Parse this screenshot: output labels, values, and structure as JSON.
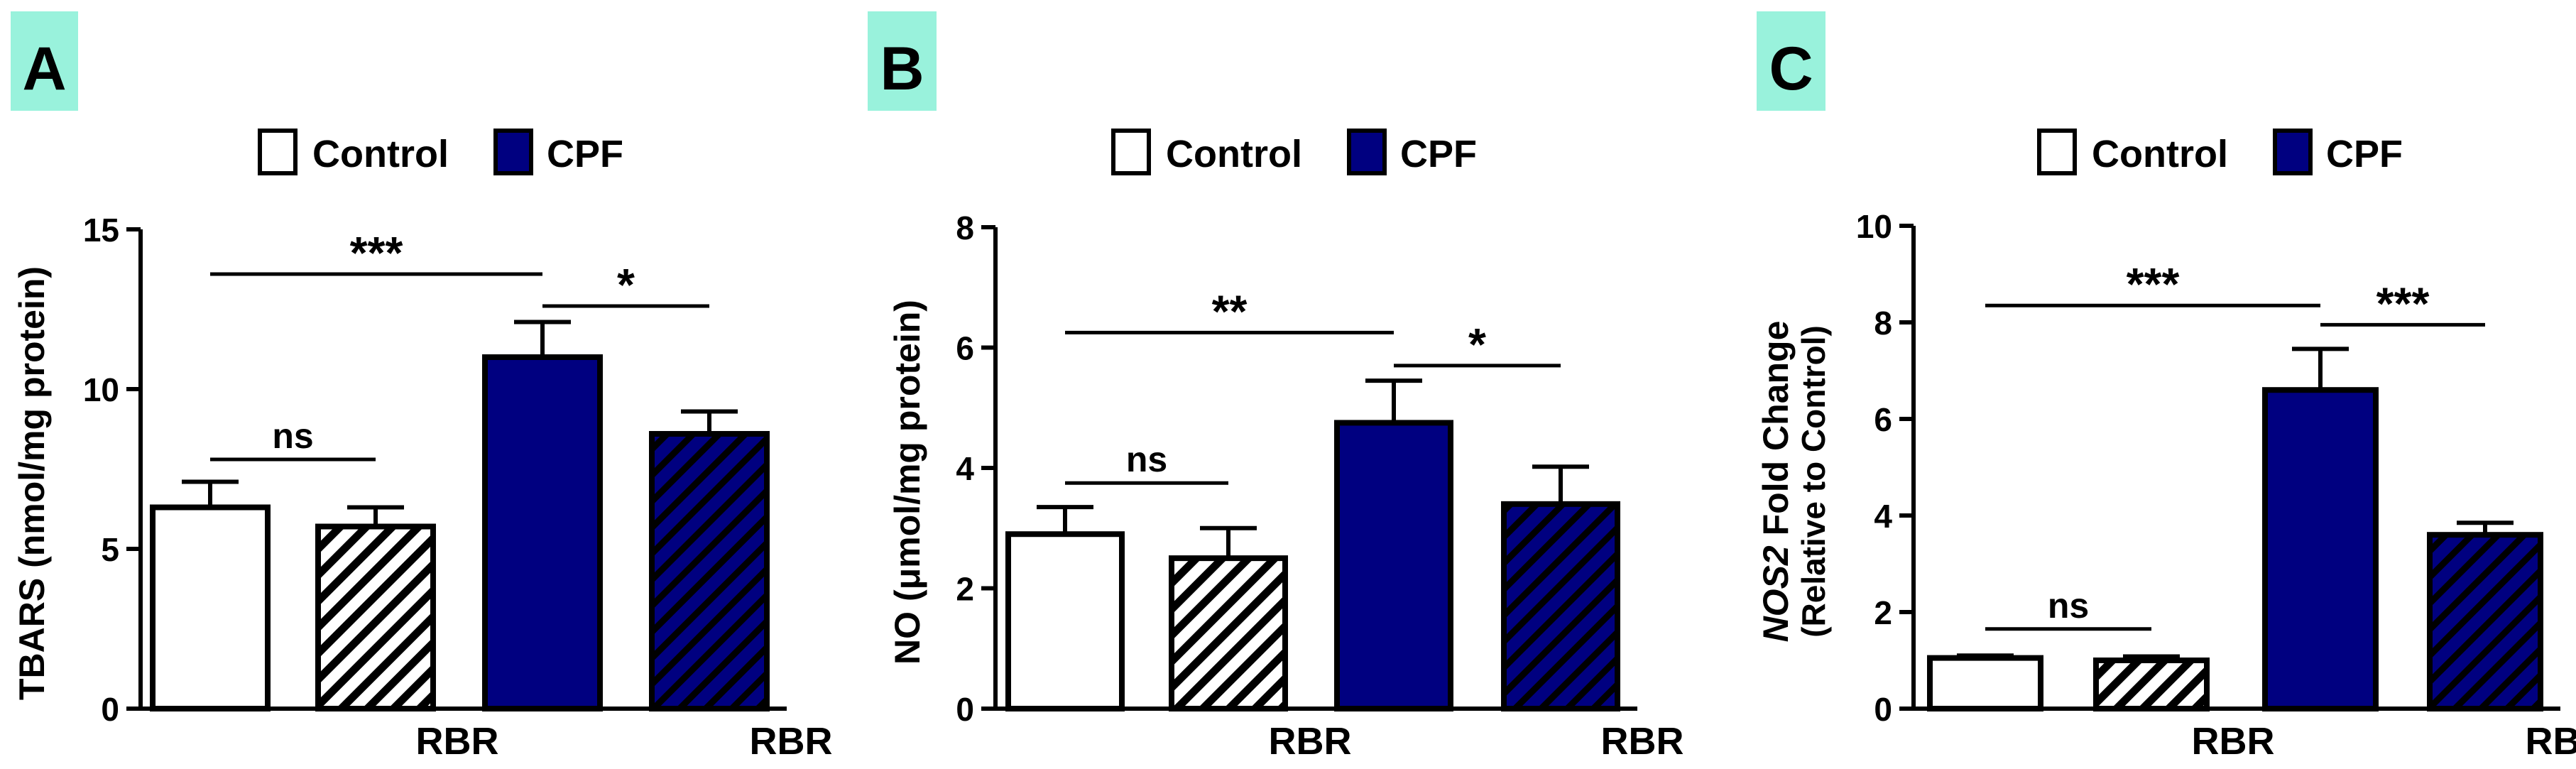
{
  "colors": {
    "control_fill": "#ffffff",
    "cpf_fill": "#000080",
    "hatch_light": "#000000",
    "hatch_dark": "#000000",
    "label_bg": "#99f2dc",
    "stroke": "#000000"
  },
  "legend": {
    "control": "Control",
    "cpf": "CPF"
  },
  "chart_data": [
    {
      "panel": "A",
      "type": "bar",
      "ylabel": "TBARS (nmol/mg protein)",
      "ylim": [
        0,
        15
      ],
      "yticks": [
        0,
        5,
        10,
        15
      ],
      "categories": [
        "Control",
        "Control + RBR",
        "CPF",
        "CPF + RBR"
      ],
      "xtick_labels": [
        "",
        "RBR",
        "",
        "RBR"
      ],
      "values": [
        6.3,
        5.7,
        11.0,
        8.6
      ],
      "errors": [
        0.8,
        0.6,
        1.1,
        0.7
      ],
      "fills": [
        "control",
        "control-hatch",
        "cpf",
        "cpf-hatch"
      ],
      "significance": [
        {
          "from": 0,
          "to": 1,
          "label": "ns",
          "y": 7.8
        },
        {
          "from": 0,
          "to": 2,
          "label": "***",
          "y": 13.6
        },
        {
          "from": 2,
          "to": 3,
          "label": "*",
          "y": 12.6
        }
      ]
    },
    {
      "panel": "B",
      "type": "bar",
      "ylabel": "NO (μmol/mg protein)",
      "ylim": [
        0,
        8
      ],
      "yticks": [
        0,
        2,
        4,
        6,
        8
      ],
      "categories": [
        "Control",
        "Control + RBR",
        "CPF",
        "CPF + RBR"
      ],
      "xtick_labels": [
        "",
        "RBR",
        "",
        "RBR"
      ],
      "values": [
        2.9,
        2.5,
        4.75,
        3.4
      ],
      "errors": [
        0.45,
        0.5,
        0.7,
        0.62
      ],
      "fills": [
        "control",
        "control-hatch",
        "cpf",
        "cpf-hatch"
      ],
      "significance": [
        {
          "from": 0,
          "to": 1,
          "label": "ns",
          "y": 3.75
        },
        {
          "from": 0,
          "to": 2,
          "label": "**",
          "y": 6.25
        },
        {
          "from": 2,
          "to": 3,
          "label": "*",
          "y": 5.7
        }
      ]
    },
    {
      "panel": "C",
      "type": "bar",
      "ylabel_italic": "NOS2",
      "ylabel": " Fold Change",
      "ylabel_line2": "(Relative to Control)",
      "ylim": [
        0,
        10
      ],
      "yticks": [
        0,
        2,
        4,
        6,
        8,
        10
      ],
      "categories": [
        "Control",
        "Control + RBR",
        "CPF",
        "CPF + RBR"
      ],
      "xtick_labels": [
        "",
        "RBR",
        "",
        "RBR"
      ],
      "values": [
        1.05,
        1.0,
        6.6,
        3.6
      ],
      "errors": [
        0.05,
        0.08,
        0.85,
        0.25
      ],
      "fills": [
        "control",
        "control-hatch",
        "cpf",
        "cpf-hatch"
      ],
      "significance": [
        {
          "from": 0,
          "to": 1,
          "label": "ns",
          "y": 1.65
        },
        {
          "from": 0,
          "to": 2,
          "label": "***",
          "y": 8.35
        },
        {
          "from": 2,
          "to": 3,
          "label": "***",
          "y": 7.95
        }
      ]
    }
  ]
}
